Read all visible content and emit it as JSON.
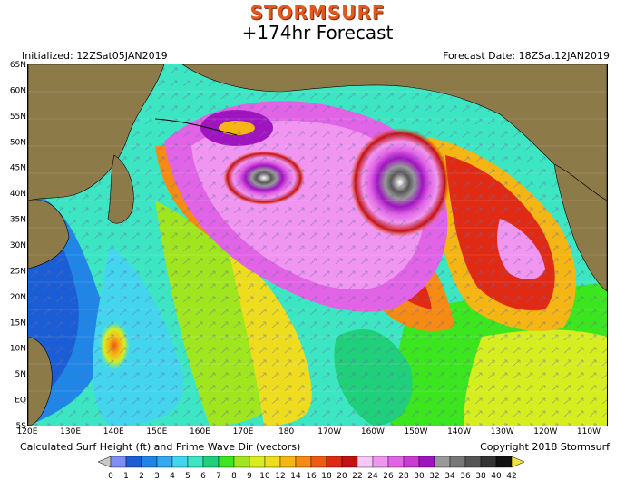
{
  "header": {
    "brand": "STORMSURF",
    "title": "+174hr Forecast",
    "initialized": "Initialized: 12ZSat05JAN2019",
    "forecast_date": "Forecast Date: 18ZSat12JAN2019"
  },
  "footer": {
    "caption": "Calculated Surf Height (ft) and Prime Wave Dir (vectors)",
    "copyright": "Copyright 2018 Stormsurf"
  },
  "axes": {
    "lat_labels": [
      "65N",
      "60N",
      "55N",
      "50N",
      "45N",
      "40N",
      "35N",
      "30N",
      "25N",
      "20N",
      "15N",
      "10N",
      "5N",
      "EQ",
      "5S"
    ],
    "lon_labels": [
      "120E",
      "130E",
      "140E",
      "150E",
      "160E",
      "170E",
      "180",
      "170W",
      "160W",
      "150W",
      "140W",
      "130W",
      "120W",
      "110W"
    ]
  },
  "legend": {
    "values": [
      "0",
      "1",
      "2",
      "3",
      "4",
      "5",
      "6",
      "7",
      "8",
      "9",
      "10",
      "12",
      "14",
      "16",
      "18",
      "20",
      "22",
      "24",
      "26",
      "28",
      "30",
      "32",
      "34",
      "36",
      "38",
      "40",
      "42"
    ],
    "colors": [
      "#7e8df7",
      "#1a5dd4",
      "#1f86e8",
      "#33a9f0",
      "#43d5ee",
      "#3ce6c2",
      "#1fcf7a",
      "#3ce61e",
      "#a0e61e",
      "#d6ee20",
      "#eedc1e",
      "#f5b614",
      "#f58b14",
      "#ee5a14",
      "#e02a14",
      "#c41010",
      "#f5c8f5",
      "#f096f0",
      "#e264e6",
      "#c83cd2",
      "#a014c0",
      "#999999",
      "#777777",
      "#555555",
      "#333333",
      "#111111",
      "#f0e040"
    ],
    "below_color": "#c8c8c8",
    "above_color": "#f0e040"
  },
  "map": {
    "land_color": "#8c7a48",
    "description_regions": [
      "North Pacific Ocean",
      "Asia",
      "North America"
    ]
  }
}
